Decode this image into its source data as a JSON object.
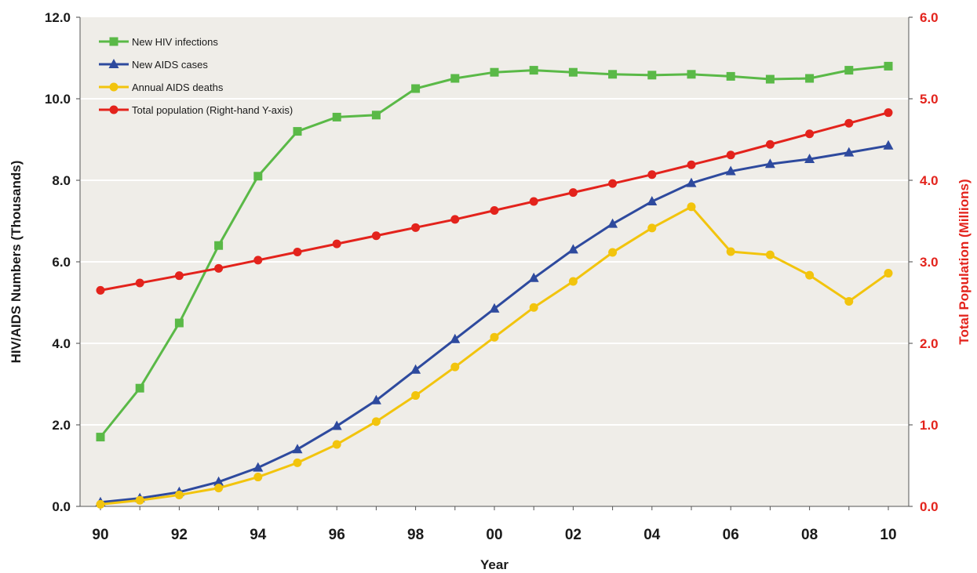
{
  "chart_data": {
    "type": "line",
    "xlabel": "Year",
    "ylabel_left": "HIV/AIDS Numbers (Thousands)",
    "ylabel_right": "Total Population (Millions)",
    "x": [
      1990,
      1991,
      1992,
      1993,
      1994,
      1995,
      1996,
      1997,
      1998,
      1999,
      2000,
      2001,
      2002,
      2003,
      2004,
      2005,
      2006,
      2007,
      2008,
      2009,
      2010
    ],
    "xticks": [
      {
        "year": 1990,
        "label": "90"
      },
      {
        "year": 1992,
        "label": "92"
      },
      {
        "year": 1994,
        "label": "94"
      },
      {
        "year": 1996,
        "label": "96"
      },
      {
        "year": 1998,
        "label": "98"
      },
      {
        "year": 2000,
        "label": "00"
      },
      {
        "year": 2002,
        "label": "02"
      },
      {
        "year": 2004,
        "label": "04"
      },
      {
        "year": 2006,
        "label": "06"
      },
      {
        "year": 2008,
        "label": "08"
      },
      {
        "year": 2010,
        "label": "10"
      }
    ],
    "ylim_left": [
      0,
      12
    ],
    "ylim_right": [
      0,
      6
    ],
    "yticks_left": [
      "0.0",
      "2.0",
      "4.0",
      "6.0",
      "8.0",
      "10.0",
      "12.0"
    ],
    "yticks_right": [
      "0.0",
      "1.0",
      "2.0",
      "3.0",
      "4.0",
      "5.0",
      "6.0"
    ],
    "grid": "horizontal",
    "legend_position": "top-left",
    "series": [
      {
        "name": "New HIV infections",
        "axis": "left",
        "color": "#5ab947",
        "marker": "square",
        "values": [
          1.7,
          2.9,
          4.5,
          6.4,
          8.1,
          9.2,
          9.55,
          9.6,
          10.25,
          10.5,
          10.65,
          10.7,
          10.65,
          10.6,
          10.58,
          10.6,
          10.55,
          10.48,
          10.5,
          10.7,
          10.8
        ]
      },
      {
        "name": "New AIDS cases",
        "axis": "left",
        "color": "#2e4a9e",
        "marker": "triangle",
        "values": [
          0.1,
          0.2,
          0.35,
          0.6,
          0.95,
          1.4,
          1.97,
          2.6,
          3.35,
          4.1,
          4.85,
          5.6,
          6.3,
          6.93,
          7.48,
          7.93,
          8.22,
          8.4,
          8.52,
          8.68,
          8.85
        ]
      },
      {
        "name": "Annual AIDS deaths",
        "axis": "left",
        "color": "#f2c40d",
        "marker": "circle",
        "values": [
          0.05,
          0.15,
          0.28,
          0.45,
          0.72,
          1.07,
          1.52,
          2.08,
          2.72,
          3.42,
          4.15,
          4.88,
          5.52,
          6.23,
          6.83,
          7.35,
          6.25,
          6.17,
          5.67,
          5.03,
          5.72
        ]
      },
      {
        "name": "Total population (Right-hand Y-axis)",
        "axis": "right",
        "color": "#e3231c",
        "marker": "circle",
        "values": [
          2.65,
          2.74,
          2.83,
          2.92,
          3.02,
          3.12,
          3.22,
          3.32,
          3.42,
          3.52,
          3.63,
          3.74,
          3.85,
          3.96,
          4.07,
          4.19,
          4.31,
          4.44,
          4.57,
          4.7,
          4.83
        ]
      }
    ]
  }
}
